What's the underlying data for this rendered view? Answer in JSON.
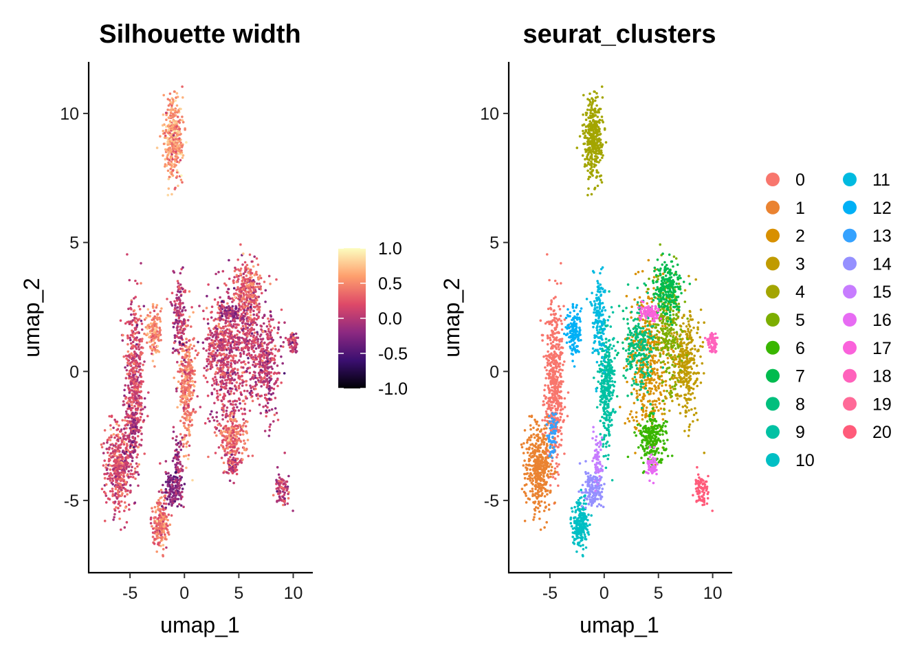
{
  "chart_data": [
    {
      "type": "scatter",
      "title": "Silhouette width",
      "xlabel": "umap_1",
      "ylabel": "umap_2",
      "xlim": [
        -8.8,
        11.8
      ],
      "ylim": [
        -7.8,
        12.0
      ],
      "xticks": [
        -5,
        0,
        5,
        10
      ],
      "xtick_labels": [
        "-5",
        "0",
        "5",
        "10"
      ],
      "yticks": [
        -5,
        0,
        5,
        10
      ],
      "ytick_labels": [
        "-5",
        "0",
        "5",
        "10"
      ],
      "color_scale": {
        "name": "magma",
        "limits": [
          -1.0,
          1.0
        ],
        "breaks": [
          1.0,
          0.5,
          0.0,
          -0.5,
          -1.0
        ],
        "break_labels": [
          "1.0",
          "0.5",
          "0.0",
          "-0.5",
          "-1.0"
        ],
        "colors": [
          "#000004",
          "#3b0f70",
          "#8c2981",
          "#de4968",
          "#fe9f6d",
          "#fcfdbf"
        ]
      },
      "regions": [
        {
          "cluster": "0",
          "cx": -4.6,
          "cy": -0.5,
          "sx": 0.55,
          "sy": 2.1,
          "n": 520,
          "silhouette": 0.15
        },
        {
          "cluster": "1",
          "cx": -6.0,
          "cy": -3.7,
          "sx": 0.8,
          "sy": 1.1,
          "n": 420,
          "silhouette": 0.2
        },
        {
          "cluster": "2",
          "cx": 4.0,
          "cy": 0.4,
          "sx": 1.2,
          "sy": 1.7,
          "n": 420,
          "silhouette": 0.1
        },
        {
          "cluster": "3",
          "cx": 7.5,
          "cy": 0.3,
          "sx": 0.9,
          "sy": 1.4,
          "n": 340,
          "silhouette": 0.05
        },
        {
          "cluster": "4",
          "cx": -1.0,
          "cy": 9.0,
          "sx": 0.55,
          "sy": 0.9,
          "n": 380,
          "silhouette": 0.55
        },
        {
          "cluster": "5",
          "cx": 5.8,
          "cy": 1.8,
          "sx": 0.9,
          "sy": 1.3,
          "n": 260,
          "silhouette": 0.1
        },
        {
          "cluster": "6",
          "cx": 4.5,
          "cy": -2.6,
          "sx": 0.8,
          "sy": 0.6,
          "n": 240,
          "silhouette": 0.35
        },
        {
          "cluster": "7",
          "cx": 5.8,
          "cy": 3.2,
          "sx": 0.8,
          "sy": 0.7,
          "n": 220,
          "silhouette": 0.3
        },
        {
          "cluster": "8",
          "cx": 3.2,
          "cy": 1.0,
          "sx": 0.9,
          "sy": 1.2,
          "n": 220,
          "silhouette": 0.15
        },
        {
          "cluster": "9",
          "cx": 0.2,
          "cy": -0.6,
          "sx": 0.45,
          "sy": 1.4,
          "n": 320,
          "silhouette": 0.45
        },
        {
          "cluster": "10",
          "cx": -2.2,
          "cy": -5.9,
          "sx": 0.45,
          "sy": 0.55,
          "n": 200,
          "silhouette": 0.4
        },
        {
          "cluster": "11",
          "cx": -0.5,
          "cy": 2.0,
          "sx": 0.4,
          "sy": 1.1,
          "n": 160,
          "silhouette": 0.0
        },
        {
          "cluster": "12",
          "cx": -2.8,
          "cy": 1.6,
          "sx": 0.4,
          "sy": 0.6,
          "n": 140,
          "silhouette": 0.5
        },
        {
          "cluster": "13",
          "cx": -4.8,
          "cy": -2.5,
          "sx": 0.3,
          "sy": 0.6,
          "n": 60,
          "silhouette": -0.1
        },
        {
          "cluster": "14",
          "cx": -1.0,
          "cy": -4.5,
          "sx": 0.6,
          "sy": 0.5,
          "n": 140,
          "silhouette": -0.2
        },
        {
          "cluster": "15",
          "cx": -0.6,
          "cy": -3.4,
          "sx": 0.3,
          "sy": 0.6,
          "n": 60,
          "silhouette": -0.1
        },
        {
          "cluster": "16",
          "cx": 4.4,
          "cy": -3.7,
          "sx": 0.3,
          "sy": 0.3,
          "n": 60,
          "silhouette": 0.1
        },
        {
          "cluster": "17",
          "cx": 4.2,
          "cy": 2.3,
          "sx": 0.6,
          "sy": 0.2,
          "n": 90,
          "silhouette": -0.1
        },
        {
          "cluster": "18",
          "cx": 10.0,
          "cy": 1.1,
          "sx": 0.3,
          "sy": 0.25,
          "n": 60,
          "silhouette": 0.1
        },
        {
          "cluster": "20",
          "cx": 9.0,
          "cy": -4.6,
          "sx": 0.45,
          "sy": 0.35,
          "n": 80,
          "silhouette": 0.05
        }
      ]
    },
    {
      "type": "scatter",
      "title": "seurat_clusters",
      "xlabel": "umap_1",
      "ylabel": "umap_2",
      "xlim": [
        -8.8,
        11.8
      ],
      "ylim": [
        -7.8,
        12.0
      ],
      "xticks": [
        -5,
        0,
        5,
        10
      ],
      "xtick_labels": [
        "-5",
        "0",
        "5",
        "10"
      ],
      "yticks": [
        -5,
        0,
        5,
        10
      ],
      "ytick_labels": [
        "-5",
        "0",
        "5",
        "10"
      ],
      "legend_placement": "right",
      "legend": [
        {
          "label": "0",
          "color": "#F8766D"
        },
        {
          "label": "1",
          "color": "#EA8331"
        },
        {
          "label": "2",
          "color": "#D89000"
        },
        {
          "label": "3",
          "color": "#C09B00"
        },
        {
          "label": "4",
          "color": "#A3A500"
        },
        {
          "label": "5",
          "color": "#7CAE00"
        },
        {
          "label": "6",
          "color": "#39B600"
        },
        {
          "label": "7",
          "color": "#00BB4E"
        },
        {
          "label": "8",
          "color": "#00BF7D"
        },
        {
          "label": "9",
          "color": "#00C1A3"
        },
        {
          "label": "10",
          "color": "#00BFC4"
        },
        {
          "label": "11",
          "color": "#00BAE0"
        },
        {
          "label": "12",
          "color": "#00B0F6"
        },
        {
          "label": "13",
          "color": "#35A2FF"
        },
        {
          "label": "14",
          "color": "#9590FF"
        },
        {
          "label": "15",
          "color": "#C77CFF"
        },
        {
          "label": "16",
          "color": "#E76BF3"
        },
        {
          "label": "17",
          "color": "#FA62DB"
        },
        {
          "label": "18",
          "color": "#FF62BC"
        },
        {
          "label": "19",
          "color": "#FF6A98"
        },
        {
          "label": "20",
          "color": "#FF5B7A"
        }
      ]
    }
  ]
}
